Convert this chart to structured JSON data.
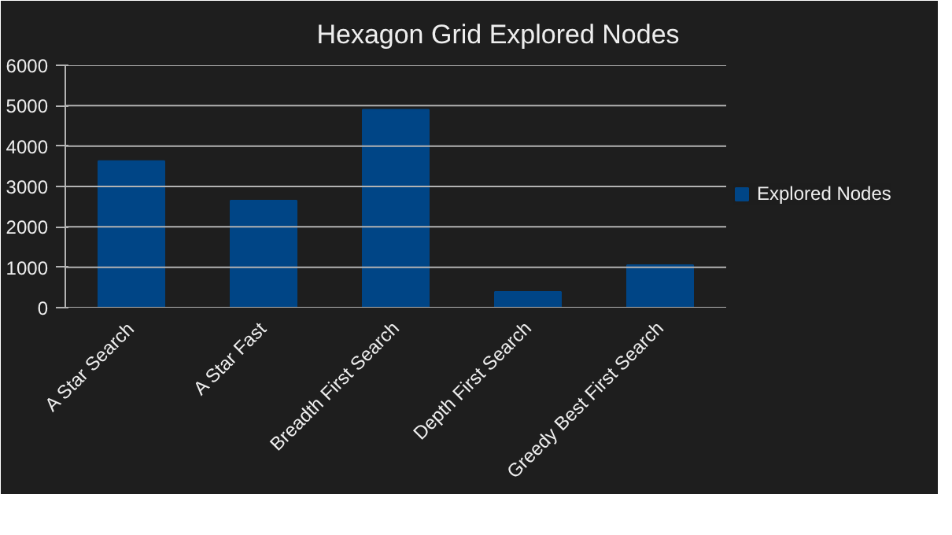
{
  "chart_data": {
    "type": "bar",
    "title": "Hexagon Grid Explored Nodes",
    "categories": [
      "A Star Search",
      "A Star Fast",
      "Breadth First Search",
      "Depth First Search",
      "Greedy Best First Search"
    ],
    "series": [
      {
        "name": "Explored Nodes",
        "color": "#004586",
        "values": [
          3630,
          2650,
          4900,
          390,
          1050
        ]
      }
    ],
    "ylim": [
      0,
      6000
    ],
    "yticks": [
      0,
      1000,
      2000,
      3000,
      4000,
      5000,
      6000
    ],
    "grid": "y",
    "legend": "right"
  }
}
